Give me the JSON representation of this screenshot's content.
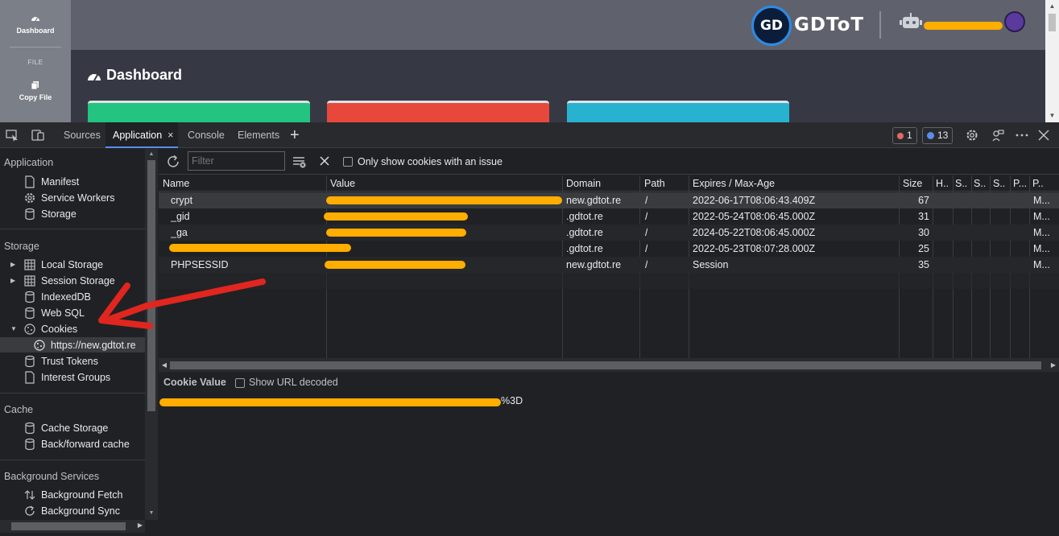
{
  "page": {
    "sidebar": {
      "dashboard_label": "Dashboard",
      "file_section": "FILE",
      "copy_file_label": "Copy File"
    },
    "header": {
      "logo_initials": "GD",
      "logo_text": "GDToT"
    },
    "title": "Dashboard",
    "card_colors": [
      "#22c47f",
      "#e8483b",
      "#27b3cf"
    ]
  },
  "devtools": {
    "tabs": [
      {
        "label": "Sources",
        "active": false
      },
      {
        "label": "Application",
        "active": true
      },
      {
        "label": "Console",
        "active": false
      },
      {
        "label": "Elements",
        "active": false
      }
    ],
    "tab_close": "×",
    "add_tab": "+",
    "error_count": "1",
    "message_count": "13",
    "sidebar": {
      "application": {
        "title": "Application",
        "items": [
          "Manifest",
          "Service Workers",
          "Storage"
        ]
      },
      "storage": {
        "title": "Storage",
        "items": [
          "Local Storage",
          "Session Storage",
          "IndexedDB",
          "Web SQL",
          "Cookies",
          "https://new.gdtot.re",
          "Trust Tokens",
          "Interest Groups"
        ]
      },
      "cache": {
        "title": "Cache",
        "items": [
          "Cache Storage",
          "Back/forward cache"
        ]
      },
      "background": {
        "title": "Background Services",
        "items": [
          "Background Fetch",
          "Background Sync"
        ]
      }
    },
    "toolbar": {
      "filter_placeholder": "Filter",
      "only_issue_label": "Only show cookies with an issue"
    },
    "table": {
      "columns": [
        "Name",
        "Value",
        "Domain",
        "Path",
        "Expires / Max-Age",
        "Size",
        "H..",
        "S..",
        "S..",
        "S..",
        "P...",
        "P.."
      ],
      "rows": [
        {
          "name": "crypt",
          "domain": "new.gdtot.re",
          "path": "/",
          "expires": "2022-06-17T08:06:43.409Z",
          "size": "67",
          "p": "M..."
        },
        {
          "name": "_gid",
          "domain": ".gdtot.re",
          "path": "/",
          "expires": "2022-05-24T08:06:45.000Z",
          "size": "31",
          "p": "M..."
        },
        {
          "name": "_ga",
          "domain": ".gdtot.re",
          "path": "/",
          "expires": "2024-05-22T08:06:45.000Z",
          "size": "30",
          "p": "M..."
        },
        {
          "name": "",
          "domain": ".gdtot.re",
          "path": "/",
          "expires": "2022-05-23T08:07:28.000Z",
          "size": "25",
          "p": "M..."
        },
        {
          "name": "PHPSESSID",
          "domain": "new.gdtot.re",
          "path": "/",
          "expires": "Session",
          "size": "35",
          "p": "M..."
        }
      ]
    },
    "cookie_value": {
      "title": "Cookie Value",
      "show_decoded_label": "Show URL decoded",
      "value_suffix": "%3D"
    },
    "colors": {
      "redaction": "#ffad00",
      "annotation_arrow": "#e0261f",
      "accent": "#5a8dee"
    }
  }
}
